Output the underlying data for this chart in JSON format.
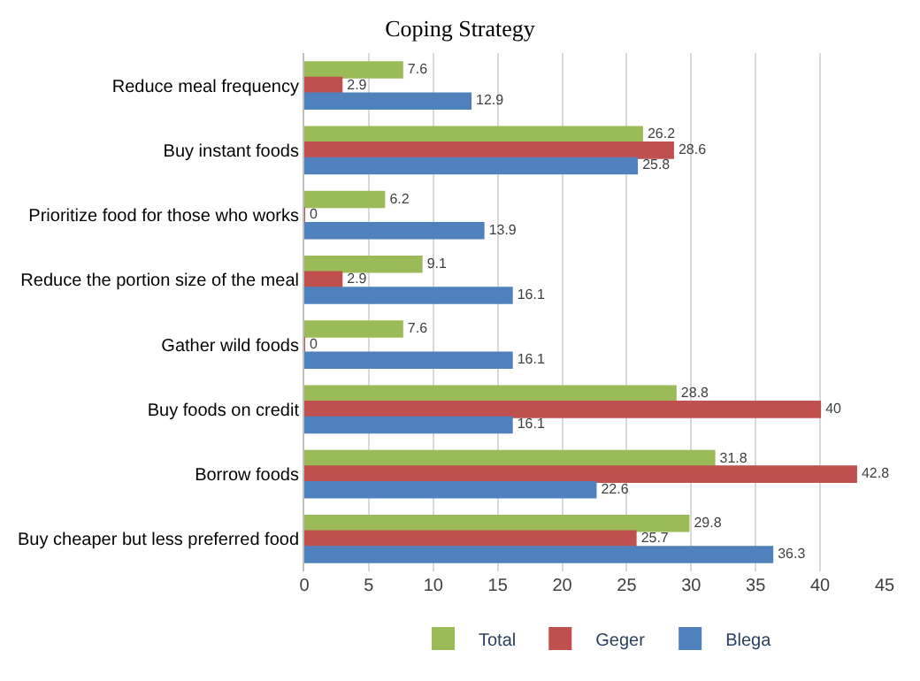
{
  "chart_data": {
    "type": "bar",
    "orientation": "horizontal",
    "title": "Coping Strategy",
    "categories": [
      "Reduce meal frequency",
      "Buy instant foods",
      "Prioritize food for those who works",
      "Reduce the portion size of the meal",
      "Gather wild foods",
      "Buy foods on credit",
      "Borrow foods",
      "Buy cheaper but less preferred food"
    ],
    "series": [
      {
        "name": "Total",
        "color": "#9bbb59",
        "values": [
          7.6,
          26.2,
          6.2,
          9.1,
          7.6,
          28.8,
          31.8,
          29.8
        ]
      },
      {
        "name": "Geger",
        "color": "#c0504d",
        "values": [
          2.9,
          28.6,
          0,
          2.9,
          0,
          40,
          42.8,
          25.7
        ]
      },
      {
        "name": "Blega",
        "color": "#4f81bd",
        "values": [
          12.9,
          25.8,
          13.9,
          16.1,
          16.1,
          16.1,
          22.6,
          36.3
        ]
      }
    ],
    "xlim": [
      0,
      45
    ],
    "xticks": [
      0,
      5,
      10,
      15,
      20,
      25,
      30,
      35,
      40,
      45
    ],
    "grid": "x",
    "legend": "bottom",
    "data_labels": true
  }
}
